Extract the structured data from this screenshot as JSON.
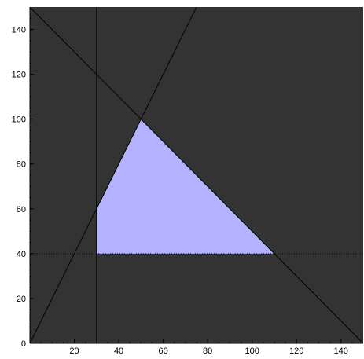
{
  "chart_data": {
    "type": "area",
    "title": "",
    "xlabel": "",
    "ylabel": "",
    "xlim": [
      0,
      150
    ],
    "ylim": [
      0,
      150
    ],
    "x_ticks": [
      20,
      40,
      60,
      80,
      100,
      120,
      140
    ],
    "y_ticks": [
      0,
      20,
      40,
      60,
      80,
      100,
      120,
      140
    ],
    "grid": false,
    "colors": {
      "plot_background": "#333333",
      "feasible_region": "#b3b3ff",
      "constraint_line": "#000000",
      "axis": "#000000"
    },
    "feasible_region": {
      "vertices": [
        [
          30,
          40
        ],
        [
          30,
          60
        ],
        [
          50,
          100
        ],
        [
          110,
          40
        ]
      ]
    },
    "constraint_lines": [
      {
        "kind": "vertical",
        "x": 30,
        "style": "solid"
      },
      {
        "kind": "horizontal",
        "y": 40,
        "style": "dotted"
      },
      {
        "kind": "line",
        "points": [
          [
            0,
            0
          ],
          [
            75,
            150
          ]
        ],
        "style": "solid"
      },
      {
        "kind": "line",
        "points": [
          [
            0,
            150
          ],
          [
            150,
            0
          ]
        ],
        "style": "solid"
      }
    ]
  }
}
